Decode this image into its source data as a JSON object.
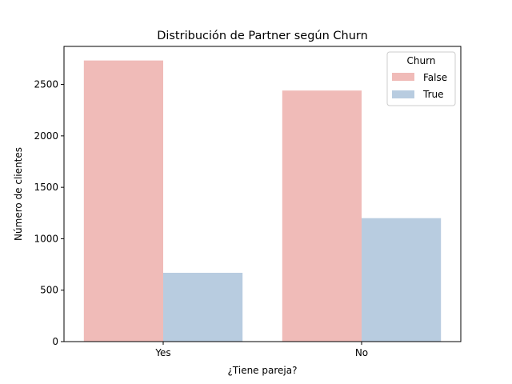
{
  "chart_data": {
    "type": "bar",
    "title": "Distribución de Partner según Churn",
    "xlabel": "¿Tiene pareja?",
    "ylabel": "Número de clientes",
    "categories": [
      "Yes",
      "No"
    ],
    "series": [
      {
        "name": "False",
        "values": [
          2733,
          2441
        ],
        "color": "#f0bbb8"
      },
      {
        "name": "True",
        "values": [
          669,
          1200
        ],
        "color": "#b8cce0"
      }
    ],
    "ylim": [
      0,
      2870
    ],
    "yticks": [
      0,
      500,
      1000,
      1500,
      2000,
      2500
    ],
    "grid": false,
    "legend": {
      "title": "Churn",
      "placement": "top-right"
    }
  }
}
